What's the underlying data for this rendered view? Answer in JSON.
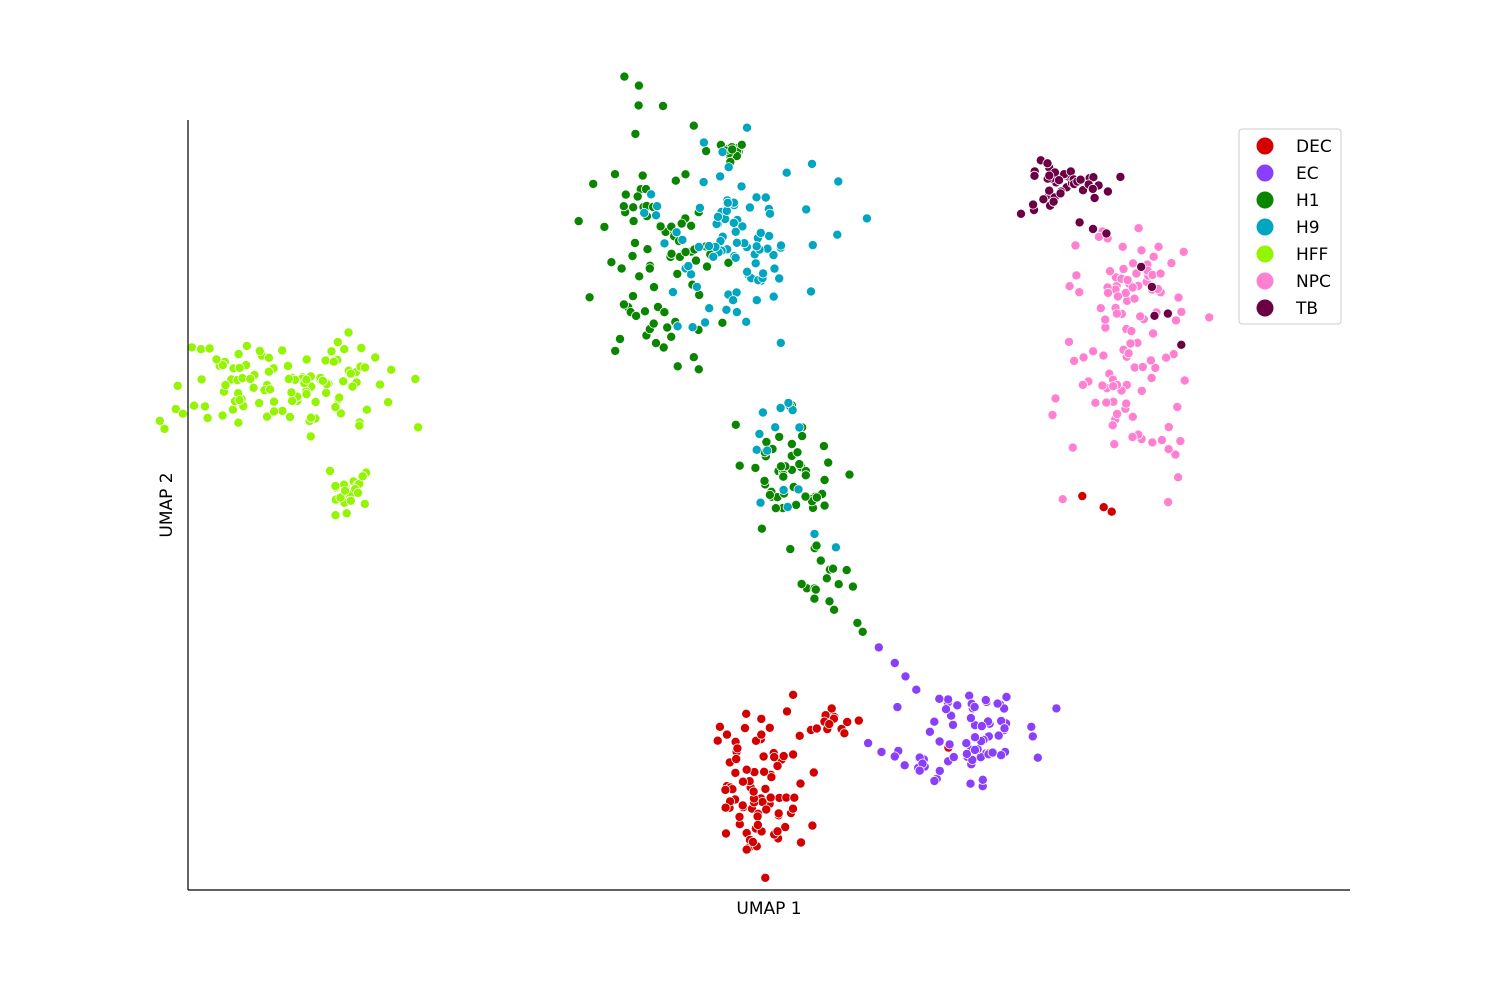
{
  "chart_data": {
    "type": "scatter",
    "title": "",
    "xlabel": "UMAP 1",
    "ylabel": "UMAP 2",
    "xlim": [
      -6.5,
      15.2
    ],
    "ylim": [
      -5.8,
      11.5
    ],
    "grid": false,
    "ticks_visible": false,
    "legend_position": "top-right",
    "series": [
      {
        "name": "DEC",
        "color": "#d40000",
        "clusters": [
          {
            "cx": 4.1,
            "cy": -3.6,
            "sx": 0.45,
            "sy": 0.9,
            "n": 85
          },
          {
            "cx": 5.6,
            "cy": -1.95,
            "sx": 0.35,
            "sy": 0.18,
            "n": 16
          }
        ],
        "points": [
          [
            7.7,
            -2.6
          ],
          [
            10.2,
            3.05
          ],
          [
            10.6,
            2.8
          ],
          [
            10.75,
            2.7
          ]
        ]
      },
      {
        "name": "EC",
        "color": "#8a3ffc",
        "clusters": [
          {
            "cx": 8.1,
            "cy": -2.3,
            "sx": 0.55,
            "sy": 0.45,
            "n": 62
          },
          {
            "cx": 7.3,
            "cy": -3.0,
            "sx": 0.4,
            "sy": 0.15,
            "n": 10
          }
        ],
        "points": [
          [
            6.4,
            -0.35
          ],
          [
            6.7,
            -0.7
          ],
          [
            6.9,
            -1.0
          ],
          [
            7.1,
            -1.3
          ],
          [
            6.2,
            -2.5
          ],
          [
            6.45,
            -2.7
          ],
          [
            6.7,
            -2.8
          ]
        ]
      },
      {
        "name": "H1",
        "color": "#0a8500",
        "clusters": [
          {
            "cx": 2.3,
            "cy": 8.6,
            "sx": 0.6,
            "sy": 1.4,
            "n": 85
          },
          {
            "cx": 3.5,
            "cy": 10.8,
            "sx": 0.2,
            "sy": 0.15,
            "n": 14
          },
          {
            "cx": 4.7,
            "cy": 3.5,
            "sx": 0.45,
            "sy": 0.6,
            "n": 50
          },
          {
            "cx": 5.4,
            "cy": 1.1,
            "sx": 0.25,
            "sy": 0.45,
            "n": 17
          }
        ],
        "points": [
          [
            6.0,
            0.2
          ],
          [
            6.1,
            0.0
          ]
        ]
      },
      {
        "name": "H9",
        "color": "#00a5c0",
        "clusters": [
          {
            "cx": 3.7,
            "cy": 8.7,
            "sx": 0.85,
            "sy": 1.1,
            "n": 95
          },
          {
            "cx": 4.5,
            "cy": 4.5,
            "sx": 0.3,
            "sy": 0.7,
            "n": 12
          }
        ],
        "points": [
          [
            5.2,
            2.2
          ],
          [
            5.6,
            1.9
          ],
          [
            4.9,
            3.2
          ]
        ]
      },
      {
        "name": "HFF",
        "color": "#94f500",
        "clusters": [
          {
            "cx": -4.7,
            "cy": 5.6,
            "sx": 1.05,
            "sy": 0.5,
            "n": 110
          },
          {
            "cx": -3.55,
            "cy": 3.1,
            "sx": 0.2,
            "sy": 0.4,
            "n": 22
          }
        ],
        "points": []
      },
      {
        "name": "NPC",
        "color": "#ff80d0",
        "clusters": [
          {
            "cx": 11.2,
            "cy": 7.8,
            "sx": 0.55,
            "sy": 0.65,
            "n": 52
          },
          {
            "cx": 11.0,
            "cy": 5.4,
            "sx": 0.65,
            "sy": 1.0,
            "n": 62
          }
        ],
        "points": []
      },
      {
        "name": "TB",
        "color": "#6b0045",
        "clusters": [
          {
            "cx": 9.7,
            "cy": 10.1,
            "sx": 0.3,
            "sy": 0.3,
            "n": 30
          },
          {
            "cx": 10.5,
            "cy": 10.05,
            "sx": 0.4,
            "sy": 0.15,
            "n": 14
          }
        ],
        "points": [
          [
            10.15,
            9.2
          ],
          [
            10.4,
            9.05
          ],
          [
            10.65,
            8.95
          ],
          [
            11.3,
            8.2
          ],
          [
            11.5,
            7.75
          ],
          [
            11.8,
            7.15
          ],
          [
            12.05,
            6.45
          ],
          [
            11.55,
            7.1
          ]
        ]
      }
    ]
  }
}
